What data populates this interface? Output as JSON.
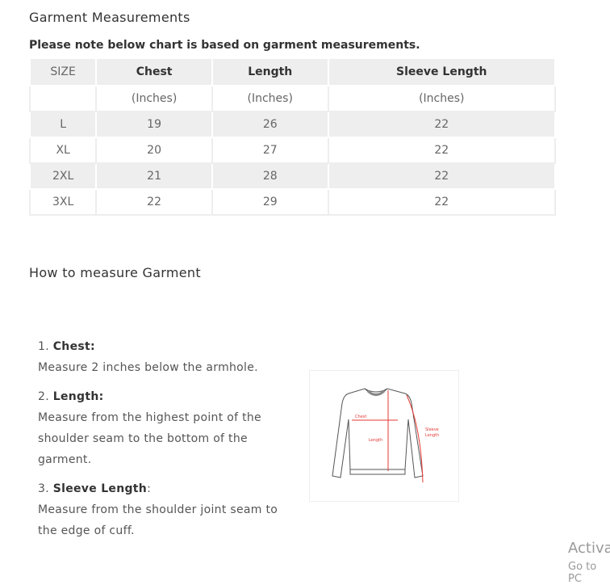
{
  "title": "Garment Measurements",
  "note": "Please note below chart is based on garment measurements.",
  "table": {
    "headers": [
      "SIZE",
      "Chest",
      "Length",
      "Sleeve Length"
    ],
    "units": [
      "",
      "(Inches)",
      "(Inches)",
      "(Inches)"
    ],
    "rows": [
      [
        "L",
        "19",
        "26",
        "22"
      ],
      [
        "XL",
        "20",
        "27",
        "22"
      ],
      [
        "2XL",
        "21",
        "28",
        "22"
      ],
      [
        "3XL",
        "22",
        "29",
        "22"
      ]
    ]
  },
  "how_title": "How to measure Garment",
  "steps": [
    {
      "num": "1.",
      "label": "Chest:",
      "suffix": "",
      "text": "Measure 2 inches below the armhole."
    },
    {
      "num": "2.",
      "label": "Length:",
      "suffix": "",
      "text": "Measure from the highest point of the shoulder seam to the bottom of the garment."
    },
    {
      "num": "3.",
      "label": "Sleeve Length",
      "suffix": ":",
      "text": "Measure from the shoulder joint seam to the edge of cuff."
    }
  ],
  "diagram": {
    "chest": "Chest",
    "length": "Length",
    "sleeve1": "Sleeve",
    "sleeve2": "Length",
    "accent": "#e53935"
  },
  "watermark": {
    "line1": "Activa",
    "line2": "Go to PC"
  }
}
